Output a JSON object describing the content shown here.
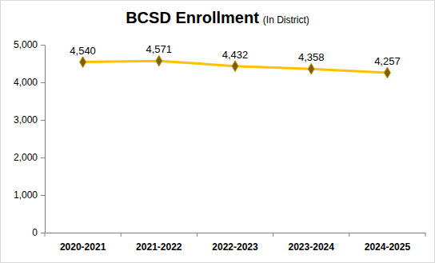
{
  "chart_data": {
    "type": "line",
    "title": "BCSD Enrollment",
    "subtitle": "(In District)",
    "categories": [
      "2020-2021",
      "2021-2022",
      "2022-2023",
      "2023-2024",
      "2024-2025"
    ],
    "values": [
      4540,
      4571,
      4432,
      4358,
      4257
    ],
    "value_labels": [
      "4,540",
      "4,571",
      "4,432",
      "4,358",
      "4,257"
    ],
    "color": "#ffc000",
    "marker": "diamond",
    "data_labels": true,
    "grid": false,
    "ylim": [
      0,
      5000
    ],
    "yticks": [
      0,
      {
        "value": 1000,
        "label": "1,000"
      },
      {
        "value": 2000,
        "label": "2,000"
      },
      {
        "value": 3000,
        "label": "3,000"
      },
      {
        "value": 4000,
        "label": "4,000"
      },
      {
        "value": 5000,
        "label": "5,000"
      }
    ]
  }
}
